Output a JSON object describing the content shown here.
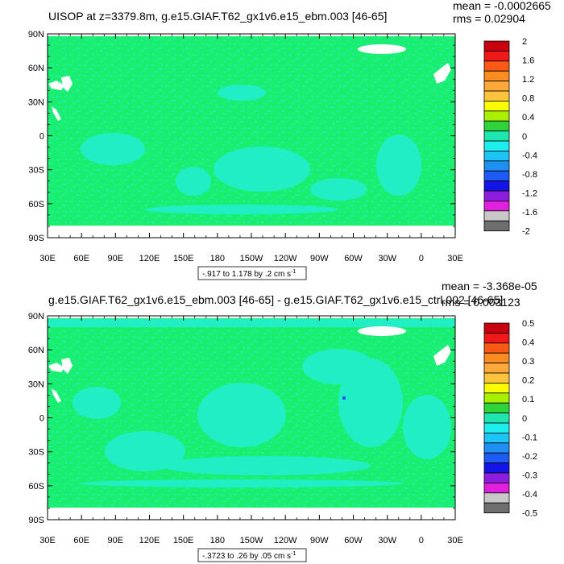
{
  "colors": {
    "land": "#ffffff",
    "background_field": "#1aee6e",
    "negative_patch": "#22eec6"
  },
  "palette": [
    "#c8000e",
    "#ee1a1a",
    "#fa5a16",
    "#fa8c22",
    "#fca83a",
    "#fcc43c",
    "#fcfc00",
    "#a8f000",
    "#2ed43a",
    "#1ee6ae",
    "#1eeeee",
    "#1ec4f4",
    "#1e90f4",
    "#1e5af4",
    "#1414e6",
    "#8c1ee0",
    "#e020dc",
    "#c8c8c8",
    "#6e6e6e"
  ],
  "chart_data": [
    {
      "type": "heatmap",
      "title": "UISOP at z=3379.8m, g.e15.GIAF.T62_gx1v6.e15_ebm.003 [46-65]",
      "mean_text": "mean = -0.0002665",
      "rms_text": "rms = 0.02904",
      "range_text": "-.917 to 1.178 by .2 cm s",
      "range_sup": "-1",
      "x_ticks": [
        "30E",
        "60E",
        "90E",
        "120E",
        "150E",
        "180",
        "150W",
        "120W",
        "90W",
        "60W",
        "30W",
        "0",
        "30E"
      ],
      "y_ticks": [
        "90N",
        "60N",
        "30N",
        "0",
        "30S",
        "60S",
        "90S"
      ],
      "ylim": [
        -90,
        90
      ],
      "xlim": [
        30,
        390
      ],
      "colorbar_levels": [
        "2",
        "1.6",
        "1.2",
        "0.8",
        "0.4",
        "0",
        "-0.4",
        "-0.8",
        "-1.2",
        "-1.6",
        "-2"
      ]
    },
    {
      "type": "heatmap",
      "title": "g.e15.GIAF.T62_gx1v6.e15_ebm.003 [46-65] - g.e15.GIAF.T62_gx1v6.e15_ctrl.002 [46-65]",
      "mean_text": "mean = -3.368e-05",
      "rms_text": "rms = 0.003123",
      "range_text": "-.3723 to .26 by .05 cm s",
      "range_sup": "-1",
      "x_ticks": [
        "30E",
        "60E",
        "90E",
        "120E",
        "150E",
        "180",
        "150W",
        "120W",
        "90W",
        "60W",
        "30W",
        "0",
        "30E"
      ],
      "y_ticks": [
        "90N",
        "60N",
        "30N",
        "0",
        "30S",
        "60S",
        "90S"
      ],
      "ylim": [
        -90,
        90
      ],
      "xlim": [
        30,
        390
      ],
      "colorbar_levels": [
        "0.5",
        "0.4",
        "0.3",
        "0.2",
        "0.1",
        "0",
        "-0.1",
        "-0.2",
        "-0.3",
        "-0.4",
        "-0.5"
      ]
    }
  ]
}
